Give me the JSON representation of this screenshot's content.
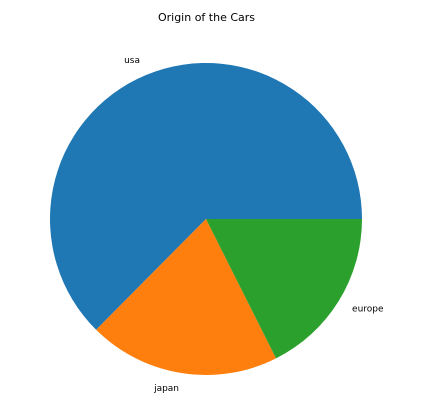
{
  "chart_data": {
    "type": "pie",
    "title": "Origin of the Cars",
    "categories": [
      "usa",
      "japan",
      "europe"
    ],
    "values": [
      249,
      79,
      70
    ],
    "colors": [
      "#1f77b4",
      "#ff7f0e",
      "#2ca02c"
    ],
    "start_angle_deg": 0,
    "direction": "counterclockwise",
    "legend": "none"
  }
}
